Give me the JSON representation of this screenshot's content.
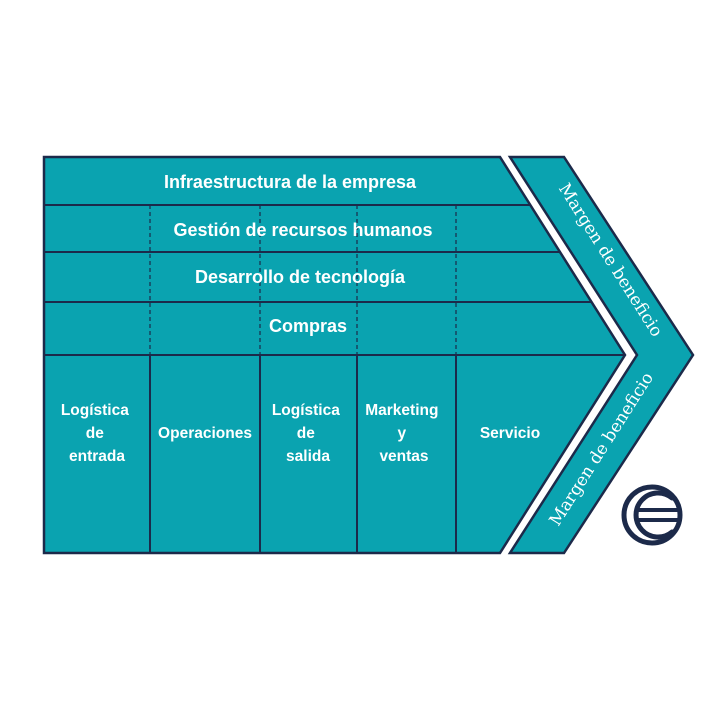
{
  "support_activities": [
    "Infraestructura de la empresa",
    "Gestión de recursos humanos",
    "Desarrollo de tecnología",
    "Compras"
  ],
  "primary_activities": [
    [
      "Logística",
      "de",
      "entrada"
    ],
    [
      "Operaciones"
    ],
    [
      "Logística",
      "de",
      "salida"
    ],
    [
      "Marketing",
      "y",
      "ventas"
    ],
    [
      "Servicio"
    ]
  ],
  "margin": {
    "upper": "Margen de beneficio",
    "lower": "Margen de beneficio"
  },
  "colors": {
    "fill": "#0aa3b0",
    "border": "#1c2a4a",
    "text": "#ffffff",
    "logo": "#1c2a4a"
  },
  "logo": {
    "icon": "euro-circle-logo-icon"
  }
}
